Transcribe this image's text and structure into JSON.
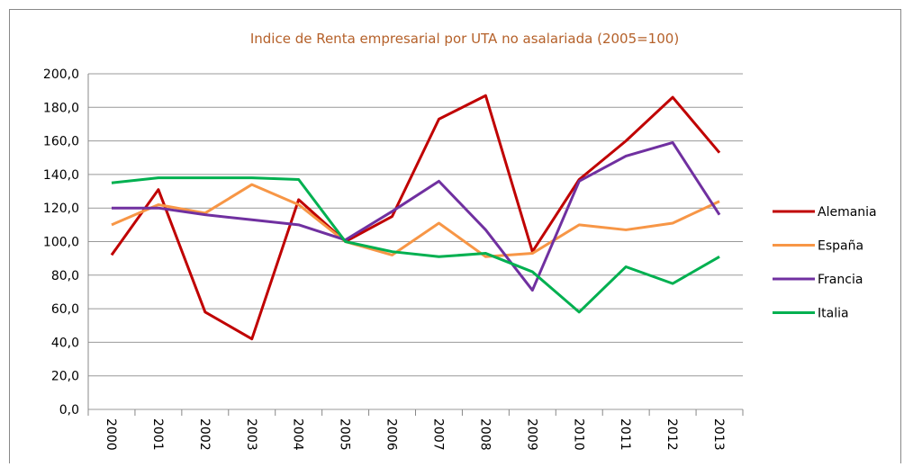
{
  "chart_data": {
    "type": "line",
    "title": "Indice de Renta empresarial por UTA no asalariada (2005=100)",
    "categories": [
      "2000",
      "2001",
      "2002",
      "2003",
      "2004",
      "2005",
      "2006",
      "2007",
      "2008",
      "2009",
      "2010",
      "2011",
      "2012",
      "2013"
    ],
    "series": [
      {
        "name": "Alemania",
        "color": "#c00000",
        "values": [
          92,
          131,
          58,
          42,
          125,
          100,
          115,
          173,
          187,
          94,
          137,
          160,
          186,
          153
        ]
      },
      {
        "name": "España",
        "color": "#f79646",
        "values": [
          110,
          122,
          117,
          134,
          122,
          100,
          92,
          111,
          91,
          93,
          110,
          107,
          111,
          124
        ]
      },
      {
        "name": "Francia",
        "color": "#7030a0",
        "values": [
          120,
          120,
          116,
          113,
          110,
          101,
          118,
          136,
          107,
          71,
          136,
          151,
          159,
          116
        ]
      },
      {
        "name": "Italia",
        "color": "#00b050",
        "values": [
          135,
          138,
          138,
          138,
          137,
          100,
          94,
          91,
          93,
          82,
          58,
          85,
          75,
          91
        ]
      }
    ],
    "ylim": [
      0,
      200
    ],
    "yticks": [
      {
        "value": 0,
        "label": "0,0"
      },
      {
        "value": 20,
        "label": "20,0"
      },
      {
        "value": 40,
        "label": "40,0"
      },
      {
        "value": 60,
        "label": "60,0"
      },
      {
        "value": 80,
        "label": "80,0"
      },
      {
        "value": 100,
        "label": "100,0"
      },
      {
        "value": 120,
        "label": "120,0"
      },
      {
        "value": 140,
        "label": "140,0"
      },
      {
        "value": 160,
        "label": "160,0"
      },
      {
        "value": 180,
        "label": "180,0"
      },
      {
        "value": 200,
        "label": "200,0"
      }
    ],
    "grid": true,
    "legend": "right"
  }
}
